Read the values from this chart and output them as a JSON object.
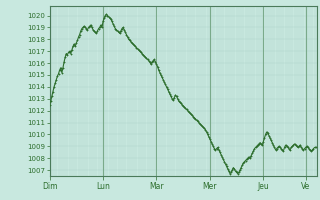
{
  "background_color": "#c8e8df",
  "plot_bg_color": "#c8e8df",
  "line_color": "#2d6e2d",
  "grid_color": "#a8cfc4",
  "day_label_color": "#2d6e2d",
  "ylim": [
    1006.5,
    1020.8
  ],
  "yticks": [
    1007,
    1008,
    1009,
    1010,
    1011,
    1012,
    1013,
    1014,
    1015,
    1016,
    1017,
    1018,
    1019,
    1020
  ],
  "day_labels": [
    "Dim",
    "Lun",
    "Mar",
    "Mer",
    "Jeu",
    "Ve"
  ],
  "day_positions": [
    0,
    48,
    96,
    144,
    192,
    230
  ],
  "total_points": 240,
  "pressure_data": [
    1012.5,
    1012.8,
    1013.2,
    1013.6,
    1014.0,
    1014.3,
    1014.6,
    1014.9,
    1015.1,
    1015.4,
    1015.6,
    1015.2,
    1015.6,
    1016.1,
    1016.5,
    1016.8,
    1016.7,
    1016.9,
    1017.0,
    1016.8,
    1017.1,
    1017.4,
    1017.6,
    1017.4,
    1017.7,
    1017.9,
    1018.2,
    1018.4,
    1018.7,
    1018.9,
    1019.0,
    1019.1,
    1019.0,
    1018.9,
    1018.8,
    1019.0,
    1019.1,
    1019.2,
    1019.0,
    1018.8,
    1018.7,
    1018.6,
    1018.5,
    1018.7,
    1018.9,
    1019.0,
    1019.2,
    1019.0,
    1019.5,
    1019.8,
    1020.0,
    1020.1,
    1020.0,
    1019.9,
    1019.8,
    1019.7,
    1019.5,
    1019.3,
    1019.1,
    1018.9,
    1018.8,
    1018.7,
    1018.6,
    1018.5,
    1018.7,
    1018.9,
    1019.0,
    1018.8,
    1018.6,
    1018.4,
    1018.2,
    1018.0,
    1017.9,
    1017.8,
    1017.7,
    1017.6,
    1017.5,
    1017.4,
    1017.3,
    1017.2,
    1017.1,
    1017.0,
    1016.9,
    1016.8,
    1016.7,
    1016.6,
    1016.5,
    1016.4,
    1016.3,
    1016.2,
    1016.1,
    1015.9,
    1016.1,
    1016.2,
    1016.3,
    1016.1,
    1015.9,
    1015.7,
    1015.4,
    1015.2,
    1015.0,
    1014.8,
    1014.6,
    1014.4,
    1014.2,
    1014.0,
    1013.8,
    1013.6,
    1013.4,
    1013.2,
    1013.0,
    1012.9,
    1013.1,
    1013.3,
    1013.2,
    1013.0,
    1012.8,
    1012.7,
    1012.6,
    1012.5,
    1012.4,
    1012.3,
    1012.2,
    1012.1,
    1012.0,
    1011.9,
    1011.8,
    1011.7,
    1011.6,
    1011.5,
    1011.4,
    1011.3,
    1011.2,
    1011.1,
    1011.0,
    1010.9,
    1010.8,
    1010.7,
    1010.6,
    1010.5,
    1010.4,
    1010.2,
    1010.0,
    1009.8,
    1009.6,
    1009.4,
    1009.2,
    1009.0,
    1008.8,
    1008.7,
    1008.8,
    1008.9,
    1008.7,
    1008.5,
    1008.3,
    1008.1,
    1007.9,
    1007.7,
    1007.5,
    1007.3,
    1007.1,
    1006.9,
    1006.7,
    1006.8,
    1007.0,
    1007.2,
    1007.1,
    1006.9,
    1006.8,
    1006.7,
    1006.8,
    1007.0,
    1007.2,
    1007.4,
    1007.6,
    1007.7,
    1007.8,
    1007.9,
    1008.0,
    1008.1,
    1008.0,
    1008.2,
    1008.4,
    1008.6,
    1008.8,
    1008.9,
    1009.0,
    1009.1,
    1009.2,
    1009.3,
    1009.2,
    1009.1,
    1009.4,
    1009.7,
    1010.0,
    1010.2,
    1010.1,
    1009.9,
    1009.7,
    1009.5,
    1009.3,
    1009.1,
    1008.9,
    1008.7,
    1008.8,
    1008.9,
    1009.0,
    1008.9,
    1008.8,
    1008.7,
    1008.6,
    1008.9,
    1009.1,
    1009.0,
    1008.9,
    1008.8,
    1008.7,
    1008.9,
    1009.0,
    1009.1,
    1009.2,
    1009.1,
    1009.0,
    1008.9,
    1009.0,
    1009.1,
    1008.9,
    1008.8,
    1008.7,
    1008.8,
    1008.9,
    1009.0,
    1008.9,
    1008.8,
    1008.7,
    1008.6,
    1008.7,
    1008.8,
    1008.9,
    1008.9
  ]
}
